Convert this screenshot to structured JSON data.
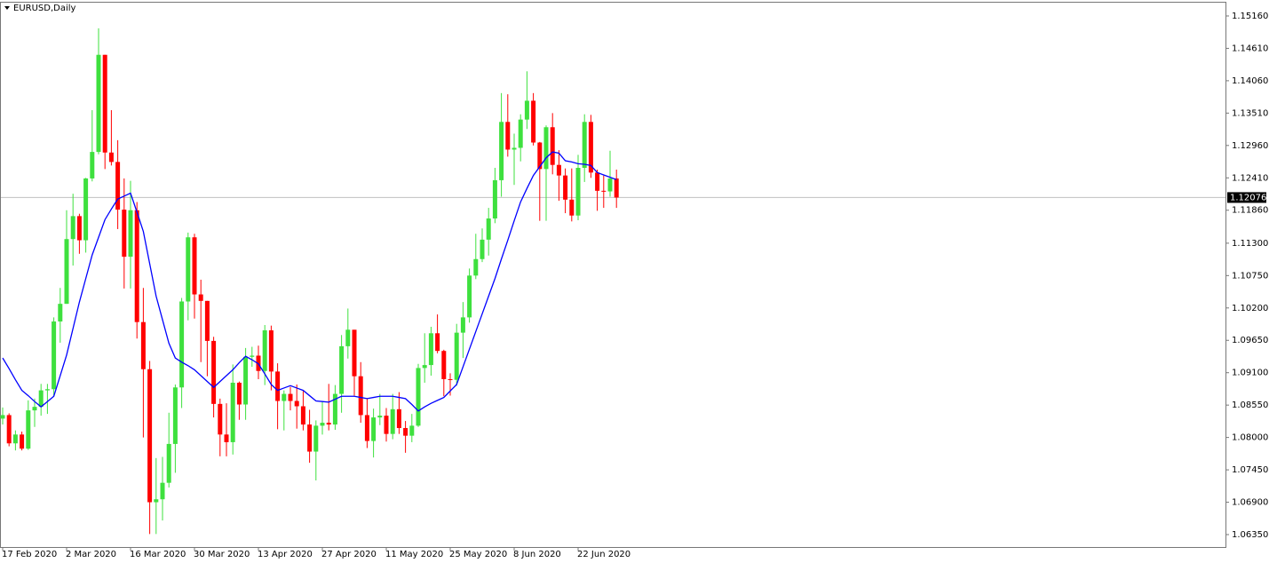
{
  "chart_data": {
    "type": "candlestick",
    "title": "EURUSD,Daily",
    "categories": [
      "17 Feb 2020",
      null,
      null,
      null,
      null,
      null,
      null,
      null,
      null,
      null,
      "2 Mar 2020",
      null,
      null,
      null,
      null,
      null,
      null,
      null,
      null,
      null,
      "16 Mar 2020",
      null,
      null,
      null,
      null,
      null,
      null,
      null,
      null,
      null,
      "30 Mar 2020",
      null,
      null,
      null,
      null,
      null,
      null,
      null,
      null,
      null,
      "13 Apr 2020",
      null,
      null,
      null,
      null,
      null,
      null,
      null,
      null,
      null,
      "27 Apr 2020",
      null,
      null,
      null,
      null,
      null,
      null,
      null,
      null,
      null,
      "11 May 2020",
      null,
      null,
      null,
      null,
      null,
      null,
      null,
      null,
      null,
      "25 May 2020",
      null,
      null,
      null,
      null,
      null,
      null,
      null,
      null,
      null,
      "8 Jun 2020",
      null,
      null,
      null,
      null,
      null,
      null,
      null,
      null,
      null,
      "22 Jun 2020",
      null,
      null,
      null,
      null,
      null,
      null
    ],
    "open": [
      1.0832,
      1.0838,
      1.079,
      1.0805,
      1.0781,
      1.0846,
      1.0852,
      1.088,
      1.0882,
      1.0997,
      1.1027,
      1.1137,
      1.1176,
      1.1135,
      1.124,
      1.1285,
      1.145,
      1.1284,
      1.1268,
      1.1187,
      1.1107,
      1.1186,
      1.0996,
      1.0916,
      1.069,
      1.0695,
      1.0723,
      1.0789,
      1.0885,
      1.1031,
      1.114,
      1.1043,
      1.1032,
      1.0964,
      1.0857,
      1.0805,
      1.0792,
      1.0893,
      1.0856,
      1.0937,
      1.0939,
      1.0913,
      1.0982,
      1.0912,
      1.0862,
      1.0874,
      1.0862,
      1.0853,
      1.0822,
      1.0776,
      1.082,
      1.0825,
      1.0822,
      1.0874,
      1.0955,
      1.0983,
      1.0904,
      1.0838,
      1.0794,
      1.0834,
      1.0837,
      1.0806,
      1.0848,
      1.0816,
      1.0803,
      1.082,
      1.0918,
      1.0923,
      1.0977,
      1.0947,
      1.0899,
      1.0898,
      1.0978,
      1.1004,
      1.1075,
      1.1103,
      1.1136,
      1.1172,
      1.1237,
      1.1336,
      1.1289,
      1.1292,
      1.134,
      1.1372,
      1.1301,
      1.1256,
      1.1327,
      1.1263,
      1.1245,
      1.1204,
      1.1177,
      1.1258,
      1.1336,
      1.125,
      1.1219,
      1.1218,
      1.124
    ],
    "high": [
      1.0851,
      1.0841,
      1.0812,
      1.081,
      1.0863,
      1.0866,
      1.0891,
      1.0891,
      1.1004,
      1.1054,
      1.1186,
      1.1214,
      1.118,
      1.1241,
      1.1356,
      1.1495,
      1.145,
      1.1356,
      1.1305,
      1.124,
      1.1236,
      1.12,
      1.1054,
      1.093,
      1.0765,
      1.0767,
      1.0842,
      1.089,
      1.1037,
      1.1148,
      1.1146,
      1.1068,
      1.1032,
      1.0971,
      1.0866,
      1.0858,
      1.0924,
      1.0895,
      1.0952,
      1.0954,
      1.0956,
      1.0991,
      1.099,
      1.0926,
      1.088,
      1.0886,
      1.089,
      1.0879,
      1.0847,
      1.0829,
      1.0862,
      1.0891,
      1.0889,
      1.0974,
      1.1019,
      1.0983,
      1.0928,
      1.0866,
      1.0849,
      1.0874,
      1.085,
      1.0874,
      1.0877,
      1.0828,
      1.084,
      1.0925,
      1.0977,
      1.0988,
      1.1009,
      1.0949,
      1.0909,
      1.0993,
      1.103,
      1.1087,
      1.1146,
      1.1155,
      1.119,
      1.1258,
      1.1385,
      1.1383,
      1.1316,
      1.1349,
      1.1422,
      1.1385,
      1.1302,
      1.133,
      1.1351,
      1.1288,
      1.1257,
      1.1257,
      1.128,
      1.1349,
      1.1348,
      1.1255,
      1.1245,
      1.1287,
      1.1255
    ],
    "low": [
      1.0822,
      1.0785,
      1.0778,
      1.0778,
      1.0779,
      1.0818,
      1.0837,
      1.084,
      1.0871,
      1.0961,
      1.1027,
      1.1092,
      1.1112,
      1.1114,
      1.1235,
      1.1281,
      1.1256,
      1.1262,
      1.1154,
      1.1053,
      1.1053,
      1.0968,
      1.08,
      1.0636,
      1.0636,
      1.0659,
      1.0715,
      1.074,
      1.085,
      1.0999,
      1.1002,
      1.0928,
      1.0904,
      1.0834,
      1.0768,
      1.0768,
      1.0771,
      1.083,
      1.083,
      1.092,
      1.0899,
      1.0889,
      1.088,
      1.0814,
      1.0812,
      1.0846,
      1.0815,
      1.0812,
      1.0757,
      1.0727,
      1.0805,
      1.0812,
      1.0813,
      1.0842,
      1.0934,
      1.0871,
      1.0825,
      1.0782,
      1.0766,
      1.0821,
      1.0793,
      1.0797,
      1.0806,
      1.0774,
      1.0792,
      1.0818,
      1.0893,
      1.0905,
      1.0943,
      1.087,
      1.0871,
      1.0888,
      1.0935,
      1.0995,
      1.1069,
      1.1098,
      1.1109,
      1.1164,
      1.1209,
      1.1277,
      1.1229,
      1.1269,
      1.1324,
      1.1296,
      1.1168,
      1.1168,
      1.1247,
      1.1202,
      1.1181,
      1.1167,
      1.1169,
      1.1234,
      1.1241,
      1.1185,
      1.119,
      1.1209,
      1.119
    ],
    "close": [
      1.0838,
      1.079,
      1.0805,
      1.0781,
      1.0846,
      1.0852,
      1.088,
      1.0882,
      1.0997,
      1.1027,
      1.1137,
      1.1176,
      1.1135,
      1.124,
      1.1285,
      1.145,
      1.1284,
      1.1268,
      1.1187,
      1.1107,
      1.1186,
      1.0996,
      1.0916,
      1.069,
      1.0695,
      1.0723,
      1.0789,
      1.0885,
      1.1031,
      1.114,
      1.1043,
      1.1032,
      1.0964,
      1.0857,
      1.0805,
      1.0792,
      1.0893,
      1.0856,
      1.0937,
      1.0939,
      1.0913,
      1.0982,
      1.0912,
      1.0862,
      1.0874,
      1.0862,
      1.0853,
      1.0822,
      1.0776,
      1.082,
      1.0825,
      1.0822,
      1.0874,
      1.0955,
      1.0983,
      1.0904,
      1.0838,
      1.0794,
      1.0834,
      1.0837,
      1.0806,
      1.0848,
      1.0816,
      1.0803,
      1.082,
      1.0918,
      1.0923,
      1.0977,
      1.0947,
      1.0899,
      1.0898,
      1.0978,
      1.1004,
      1.1075,
      1.1103,
      1.1136,
      1.1172,
      1.1237,
      1.1336,
      1.1289,
      1.1292,
      1.134,
      1.1372,
      1.1301,
      1.1256,
      1.1327,
      1.1263,
      1.1245,
      1.1204,
      1.1177,
      1.1258,
      1.1336,
      1.125,
      1.1219,
      1.1218,
      1.124,
      1.12076
    ],
    "up_color": "#3ee03e",
    "down_color": "#ff0000",
    "ma": {
      "color": "#0000ff",
      "values": [
        1.0935,
        1.0917,
        1.0898,
        1.088,
        1.0871,
        1.0861,
        1.0852,
        1.0861,
        1.087,
        1.0905,
        1.094,
        1.0985,
        1.103,
        1.107,
        1.111,
        1.114,
        1.117,
        1.1188,
        1.1205,
        1.121,
        1.1215,
        1.1183,
        1.115,
        1.1095,
        1.104,
        1.1,
        1.096,
        1.0935,
        1.0928,
        1.0922,
        1.0915,
        1.0905,
        1.0895,
        1.0885,
        1.0895,
        1.0905,
        1.0915,
        1.0927,
        1.0938,
        1.0932,
        1.0925,
        1.0908,
        1.089,
        1.088,
        1.0884,
        1.0888,
        1.0884,
        1.088,
        1.0871,
        1.0862,
        1.0861,
        1.086,
        1.0865,
        1.087,
        1.087,
        1.087,
        1.0868,
        1.0866,
        1.0868,
        1.087,
        1.087,
        1.087,
        1.0868,
        1.0866,
        1.0856,
        1.0845,
        1.0852,
        1.0858,
        1.0863,
        1.0868,
        1.0879,
        1.089,
        1.092,
        1.095,
        1.098,
        1.101,
        1.104,
        1.107,
        1.1103,
        1.1135,
        1.1168,
        1.12,
        1.1223,
        1.1245,
        1.126,
        1.1275,
        1.1285,
        1.1283,
        1.127,
        1.1268,
        1.1265,
        1.1264,
        1.1262,
        1.125,
        1.1246,
        1.1242,
        1.1238
      ]
    },
    "current_price": 1.12076,
    "ylim": [
      1.06139,
      1.15401
    ],
    "yticks": [
      {
        "value": 1.1516,
        "label": "1.15160"
      },
      {
        "value": 1.1461,
        "label": "1.14610"
      },
      {
        "value": 1.1406,
        "label": "1.14060"
      },
      {
        "value": 1.1351,
        "label": "1.13510"
      },
      {
        "value": 1.1296,
        "label": "1.12960"
      },
      {
        "value": 1.1241,
        "label": "1.12410"
      },
      {
        "value": 1.1186,
        "label": "1.11860"
      },
      {
        "value": 1.113,
        "label": "1.11300"
      },
      {
        "value": 1.1075,
        "label": "1.10750"
      },
      {
        "value": 1.102,
        "label": "1.10200"
      },
      {
        "value": 1.0965,
        "label": "1.09650"
      },
      {
        "value": 1.091,
        "label": "1.09100"
      },
      {
        "value": 1.0855,
        "label": "1.08550"
      },
      {
        "value": 1.08,
        "label": "1.08000"
      },
      {
        "value": 1.0745,
        "label": "1.07450"
      },
      {
        "value": 1.069,
        "label": "1.06900"
      },
      {
        "value": 1.0635,
        "label": "1.06350"
      }
    ]
  }
}
